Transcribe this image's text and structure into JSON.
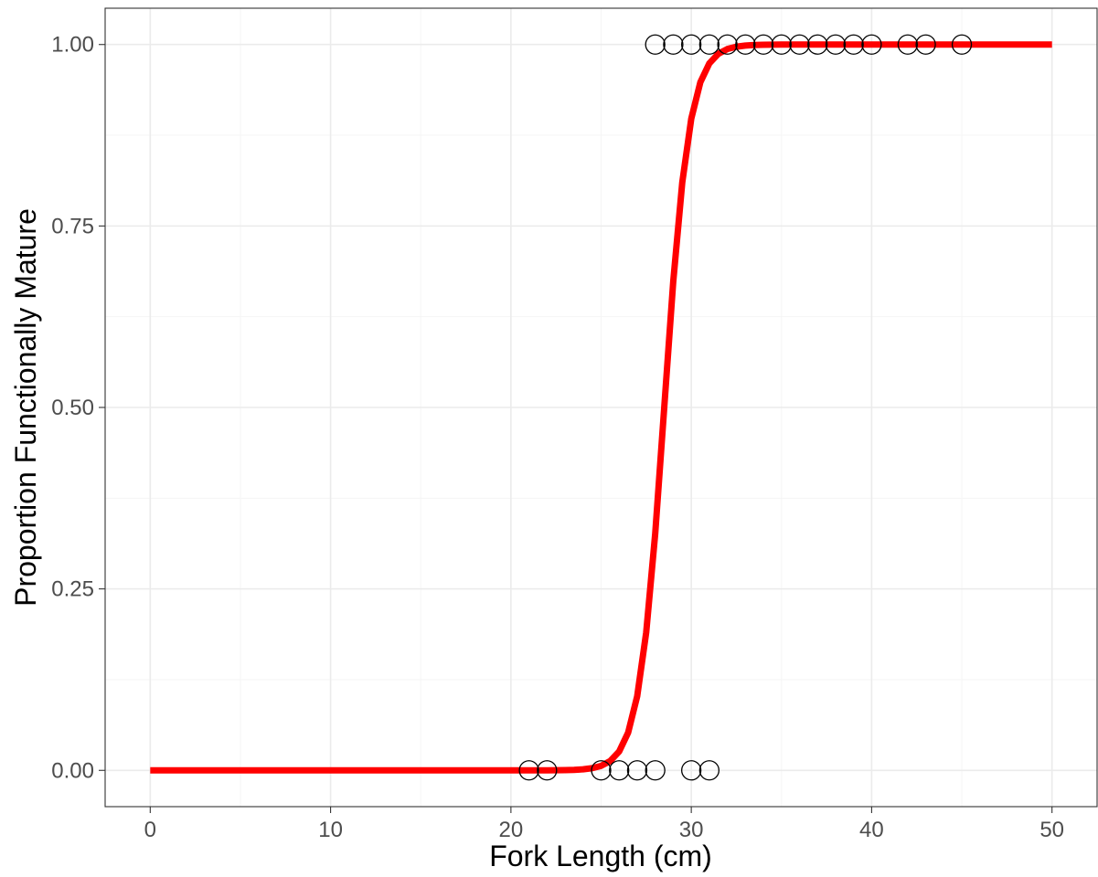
{
  "chart_data": {
    "type": "scatter",
    "xlabel": "Fork Length (cm)",
    "ylabel": "Proportion Functionally Mature",
    "xlim": [
      -2.5,
      52.5
    ],
    "ylim": [
      -0.05,
      1.05
    ],
    "x_ticks": [
      0,
      10,
      20,
      30,
      40,
      50
    ],
    "y_ticks": [
      0,
      0.25,
      0.5,
      0.75,
      1.0
    ],
    "x_tick_labels": [
      "0",
      "10",
      "20",
      "30",
      "40",
      "50"
    ],
    "y_tick_labels": [
      "0.00",
      "0.25",
      "0.50",
      "0.75",
      "1.00"
    ],
    "grid": true,
    "legend": "none",
    "observations": {
      "marker": "open-circle",
      "immature_y": 0,
      "immature_x": [
        21,
        22,
        25,
        26,
        27,
        28,
        30,
        31
      ],
      "mature_y": 1,
      "mature_x": [
        28,
        29,
        30,
        31,
        32,
        33,
        34,
        35,
        36,
        37,
        38,
        39,
        40,
        42,
        43,
        45
      ]
    },
    "fitted_curve": {
      "model": "logistic",
      "color": "#ff0000",
      "x_range": [
        0,
        50
      ],
      "L50": 28.5,
      "slope": 1.45
    }
  }
}
